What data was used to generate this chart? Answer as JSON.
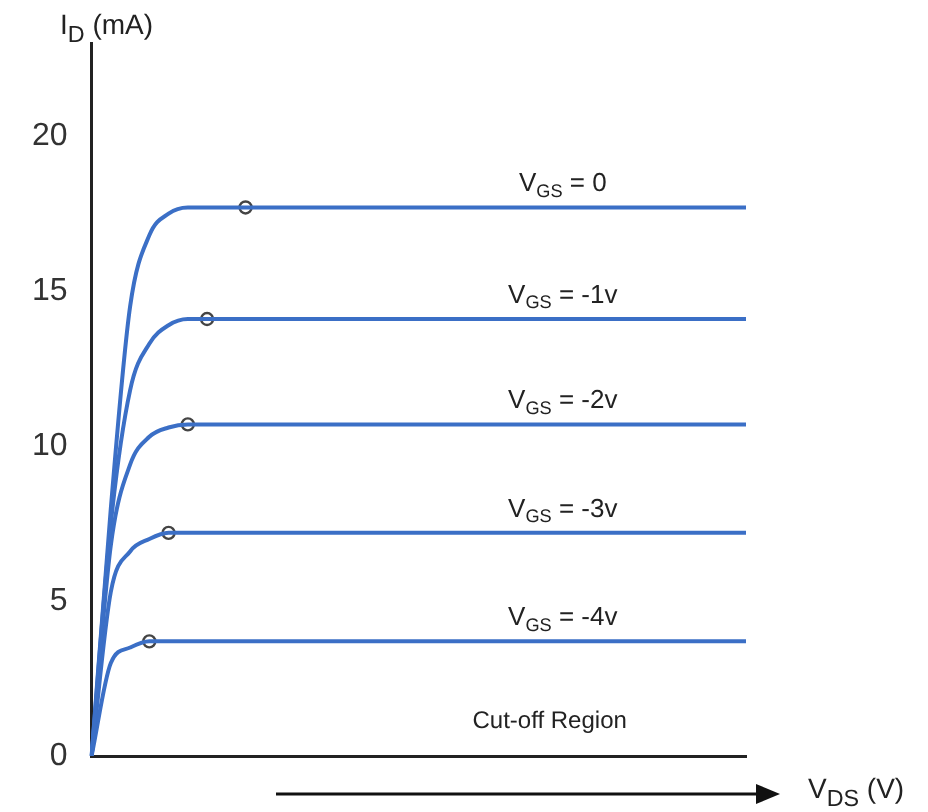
{
  "chart_data": {
    "type": "line",
    "xlabel": "V$_{DS}$ (V)",
    "ylabel": "I$_{D}$ (mA)",
    "categories": [
      null,
      null,
      null,
      null,
      null,
      null,
      null,
      null,
      null,
      null,
      null,
      null,
      null,
      null,
      null,
      null,
      null,
      null,
      null,
      null,
      null,
      null,
      null,
      null,
      null,
      null,
      null,
      null,
      null,
      null,
      null,
      null,
      null,
      null,
      null
    ],
    "series": [
      {
        "color": "#3b6fc6",
        "values": [
          0,
          8,
          14.5,
          16.8,
          17.5,
          17.7,
          17.7,
          17.7,
          17.7,
          17.7,
          17.7,
          17.7,
          17.7,
          17.7,
          17.7,
          17.7,
          17.7,
          17.7,
          17.7,
          17.7,
          17.7,
          17.7,
          17.7,
          17.7,
          17.7,
          17.7,
          17.7,
          17.7,
          17.7,
          17.7,
          17.7,
          17.7,
          17.7,
          17.7,
          17.7
        ]
      },
      {
        "color": "#3b6fc6",
        "values": [
          0,
          7.5,
          11.8,
          13.3,
          13.9,
          14.1,
          14.1,
          14.1,
          14.1,
          14.1,
          14.1,
          14.1,
          14.1,
          14.1,
          14.1,
          14.1,
          14.1,
          14.1,
          14.1,
          14.1,
          14.1,
          14.1,
          14.1,
          14.1,
          14.1,
          14.1,
          14.1,
          14.1,
          14.1,
          14.1,
          14.1,
          14.1,
          14.1,
          14.1,
          14.1
        ]
      },
      {
        "color": "#3b6fc6",
        "values": [
          0,
          6.8,
          9.4,
          10.3,
          10.6,
          10.7,
          10.7,
          10.7,
          10.7,
          10.7,
          10.7,
          10.7,
          10.7,
          10.7,
          10.7,
          10.7,
          10.7,
          10.7,
          10.7,
          10.7,
          10.7,
          10.7,
          10.7,
          10.7,
          10.7,
          10.7,
          10.7,
          10.7,
          10.7,
          10.7,
          10.7,
          10.7,
          10.7,
          10.7,
          10.7
        ]
      },
      {
        "color": "#3b6fc6",
        "values": [
          0,
          5.3,
          6.6,
          7.0,
          7.2,
          7.2,
          7.2,
          7.2,
          7.2,
          7.2,
          7.2,
          7.2,
          7.2,
          7.2,
          7.2,
          7.2,
          7.2,
          7.2,
          7.2,
          7.2,
          7.2,
          7.2,
          7.2,
          7.2,
          7.2,
          7.2,
          7.2,
          7.2,
          7.2,
          7.2,
          7.2,
          7.2,
          7.2,
          7.2,
          7.2
        ]
      },
      {
        "color": "#3b6fc6",
        "values": [
          0,
          3.0,
          3.5,
          3.7,
          3.7,
          3.7,
          3.7,
          3.7,
          3.7,
          3.7,
          3.7,
          3.7,
          3.7,
          3.7,
          3.7,
          3.7,
          3.7,
          3.7,
          3.7,
          3.7,
          3.7,
          3.7,
          3.7,
          3.7,
          3.7,
          3.7,
          3.7,
          3.7,
          3.7,
          3.7,
          3.7,
          3.7,
          3.7,
          3.7,
          3.7
        ]
      },
      {
        "type": "scatter",
        "marker": "circle",
        "color": "#444444",
        "values": [
          null,
          null,
          null,
          3.7,
          7.2,
          10.7,
          14.1,
          null,
          17.7,
          null,
          null,
          null,
          null,
          null,
          null,
          null,
          null,
          null,
          null,
          null,
          null,
          null,
          null,
          null,
          null,
          null,
          null,
          null,
          null,
          null,
          null,
          null,
          null,
          null,
          null
        ]
      }
    ],
    "annotations": [
      {
        "text": "V$_{GS}$ = 0",
        "y": 17.7
      },
      {
        "text": "V$_{GS}$ = -1v",
        "y": 14.1
      },
      {
        "text": "V$_{GS}$ = -2v",
        "y": 10.7
      },
      {
        "text": "V$_{GS}$ = -3v",
        "y": 7.2
      },
      {
        "text": "V$_{GS}$ = -4v",
        "y": 3.7
      },
      "Cut-off Region"
    ],
    "ylim": [
      0,
      23
    ],
    "yticks": [
      0,
      5,
      10,
      15,
      20
    ],
    "tick_labels": "y",
    "grid": false,
    "legend": false,
    "line_style": "solid"
  }
}
